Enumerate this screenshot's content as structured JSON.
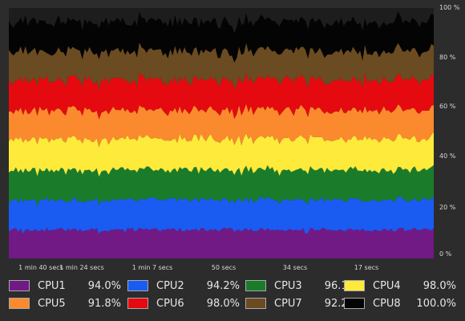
{
  "chart_data": {
    "type": "area",
    "stacked": true,
    "ylim": [
      0,
      100
    ],
    "y_ticks": [
      "100 %",
      "80 %",
      "60 %",
      "40 %",
      "20 %",
      "0 %"
    ],
    "x_ticks": [
      "1 min 40 secs",
      "1 min 24 secs",
      "1 min 7 secs",
      "50 secs",
      "34 secs",
      "17 secs"
    ],
    "series": [
      {
        "name": "CPU1",
        "value": "94.0%",
        "color": "#711a86",
        "avg": 11.5
      },
      {
        "name": "CPU2",
        "value": "94.2%",
        "color": "#1a5cf2",
        "avg": 12.0
      },
      {
        "name": "CPU3",
        "value": "96.1%",
        "color": "#1a7c2b",
        "avg": 12.0
      },
      {
        "name": "CPU4",
        "value": "98.0%",
        "color": "#fdea3a",
        "avg": 12.5
      },
      {
        "name": "CPU5",
        "value": "91.8%",
        "color": "#fb8a2e",
        "avg": 11.5
      },
      {
        "name": "CPU6",
        "value": "98.0%",
        "color": "#e50a0f",
        "avg": 12.2
      },
      {
        "name": "CPU7",
        "value": "92.2%",
        "color": "#6b4b21",
        "avg": 11.5
      },
      {
        "name": "CPU8",
        "value": "100.0%",
        "color": "#040404",
        "avg": 12.0
      }
    ]
  }
}
